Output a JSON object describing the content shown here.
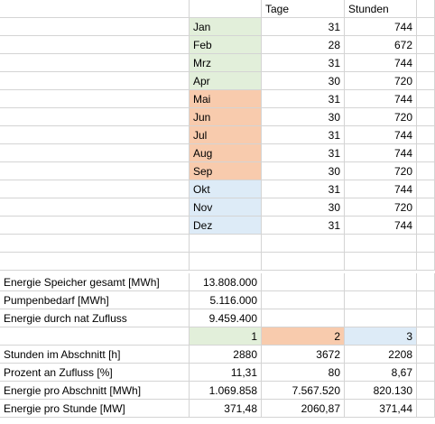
{
  "headers": {
    "days": "Tage",
    "hours": "Stunden"
  },
  "months": [
    {
      "name": "Jan",
      "days": "31",
      "hours": "744",
      "color": "#e2efda"
    },
    {
      "name": "Feb",
      "days": "28",
      "hours": "672",
      "color": "#e2efda"
    },
    {
      "name": "Mrz",
      "days": "31",
      "hours": "744",
      "color": "#e2efda"
    },
    {
      "name": "Apr",
      "days": "30",
      "hours": "720",
      "color": "#e2efda"
    },
    {
      "name": "Mai",
      "days": "31",
      "hours": "744",
      "color": "#f8cbad"
    },
    {
      "name": "Jun",
      "days": "30",
      "hours": "720",
      "color": "#f8cbad"
    },
    {
      "name": "Jul",
      "days": "31",
      "hours": "744",
      "color": "#f8cbad"
    },
    {
      "name": "Aug",
      "days": "31",
      "hours": "744",
      "color": "#f8cbad"
    },
    {
      "name": "Sep",
      "days": "30",
      "hours": "720",
      "color": "#f8cbad"
    },
    {
      "name": "Okt",
      "days": "31",
      "hours": "744",
      "color": "#ddebf7"
    },
    {
      "name": "Nov",
      "days": "30",
      "hours": "720",
      "color": "#ddebf7"
    },
    {
      "name": "Dez",
      "days": "31",
      "hours": "744",
      "color": "#ddebf7"
    }
  ],
  "energy": [
    {
      "label": "Energie Speicher gesamt [MWh]",
      "value": "13.808.000"
    },
    {
      "label": "Pumpenbedarf [MWh]",
      "value": "5.116.000"
    },
    {
      "label": "Energie durch nat Zufluss",
      "value": "9.459.400"
    }
  ],
  "segments": [
    "1",
    "2",
    "3"
  ],
  "segment_colors": [
    "#e2efda",
    "#f8cbad",
    "#ddebf7"
  ],
  "stats": [
    {
      "label": "Stunden im Abschnitt [h]",
      "values": [
        "2880",
        "3672",
        "2208"
      ]
    },
    {
      "label": "Prozent an Zufluss [%]",
      "values": [
        "11,31",
        "80",
        "8,67"
      ]
    },
    {
      "label": "Energie pro Abschnitt [MWh]",
      "values": [
        "1.069.858",
        "7.567.520",
        "820.130"
      ]
    },
    {
      "label": "Energie pro Stunde [MW]",
      "values": [
        "371,48",
        "2060,87",
        "371,44"
      ]
    }
  ]
}
